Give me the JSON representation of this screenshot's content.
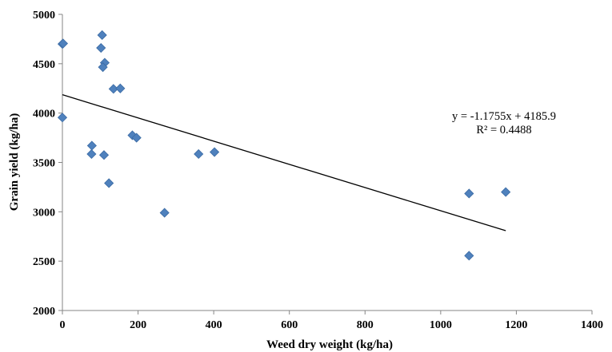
{
  "chart_data": {
    "type": "scatter",
    "title": "",
    "xlabel": "Weed dry weight (kg/ha)",
    "ylabel": "Grain yield (kg/ha)",
    "xlim": [
      0,
      1400
    ],
    "ylim": [
      2000,
      5000
    ],
    "x_ticks": [
      0,
      200,
      400,
      600,
      800,
      1000,
      1200,
      1400
    ],
    "y_ticks": [
      2000,
      2500,
      3000,
      3500,
      4000,
      4500,
      5000
    ],
    "x_tick_labels": [
      "0",
      "200",
      "400",
      "600",
      "800",
      "1000",
      "1200",
      "1400"
    ],
    "y_tick_labels": [
      "2000",
      "2500",
      "3000",
      "3500",
      "4000",
      "4500",
      "5000"
    ],
    "grid": false,
    "legend": "none",
    "marker": "diamond",
    "marker_color": "#4f81bd",
    "series": [
      {
        "points": [
          [
            0,
            4700
          ],
          [
            2,
            4705
          ],
          [
            0,
            3955
          ],
          [
            105,
            4790
          ],
          [
            102,
            4660
          ],
          [
            112,
            4510
          ],
          [
            107,
            4465
          ],
          [
            135,
            4245
          ],
          [
            153,
            4250
          ],
          [
            78,
            3670
          ],
          [
            77,
            3585
          ],
          [
            110,
            3575
          ],
          [
            123,
            3290
          ],
          [
            185,
            3775
          ],
          [
            196,
            3750
          ],
          [
            270,
            2990
          ],
          [
            360,
            3585
          ],
          [
            402,
            3605
          ],
          [
            1075,
            3185
          ],
          [
            1172,
            3200
          ],
          [
            1075,
            2555
          ]
        ]
      }
    ],
    "trendline": {
      "slope": -1.1755,
      "intercept": 4185.9,
      "x_range": [
        0,
        1172
      ],
      "color": "#000000"
    },
    "annotations": {
      "equation": "y = -1.1755x + 4185.9",
      "r_squared": "R² = 0.4488"
    }
  }
}
